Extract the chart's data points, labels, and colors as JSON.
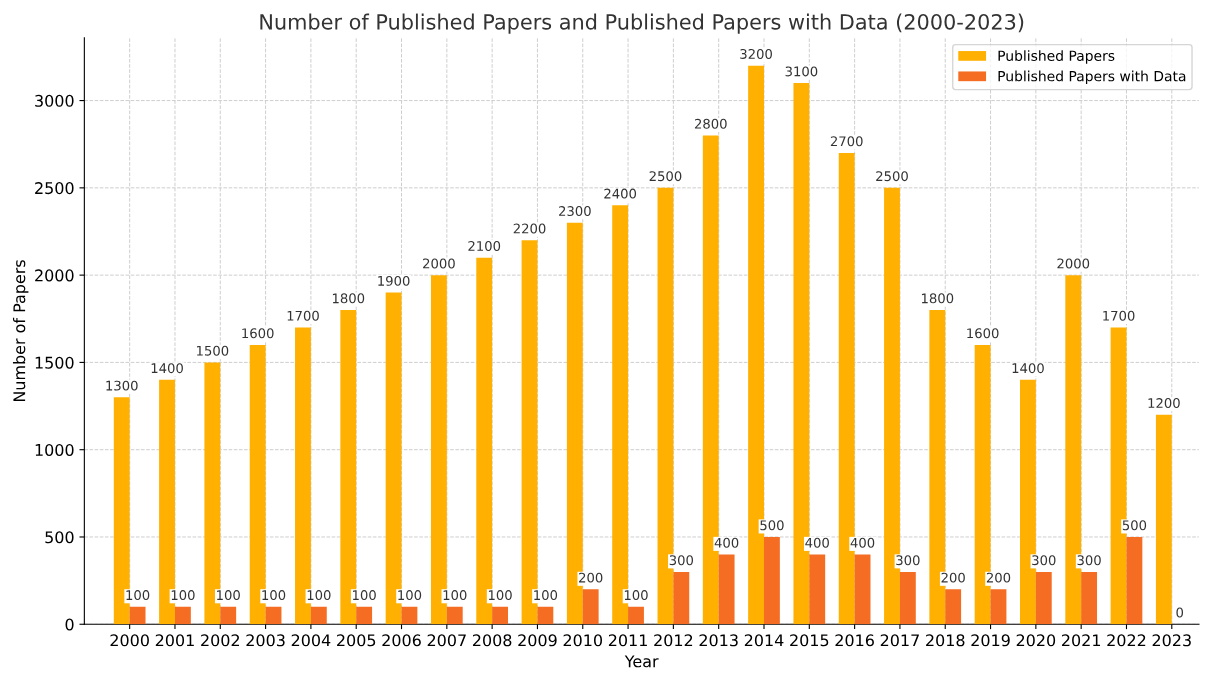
{
  "chart_data": {
    "type": "bar",
    "title": "Number of Published Papers and Published Papers with Data (2000-2023)",
    "xlabel": "Year",
    "ylabel": "Number of Papers",
    "categories": [
      "2000",
      "2001",
      "2002",
      "2003",
      "2004",
      "2005",
      "2006",
      "2007",
      "2008",
      "2009",
      "2010",
      "2011",
      "2012",
      "2013",
      "2014",
      "2015",
      "2016",
      "2017",
      "2018",
      "2019",
      "2020",
      "2021",
      "2022",
      "2023"
    ],
    "series": [
      {
        "name": "Published Papers",
        "color": "#ffb000",
        "values": [
          1300,
          1400,
          1500,
          1600,
          1700,
          1800,
          1900,
          2000,
          2100,
          2200,
          2300,
          2400,
          2500,
          2800,
          3200,
          3100,
          2700,
          2500,
          1800,
          1600,
          1400,
          2000,
          1700,
          1200
        ]
      },
      {
        "name": "Published Papers with Data",
        "color": "#f46d22",
        "values": [
          100,
          100,
          100,
          100,
          100,
          100,
          100,
          100,
          100,
          100,
          200,
          100,
          300,
          400,
          500,
          400,
          400,
          300,
          200,
          200,
          300,
          300,
          500,
          0
        ]
      }
    ],
    "ylim": [
      0,
      3360
    ],
    "yticks": [
      0,
      500,
      1000,
      1500,
      2000,
      2500,
      3000
    ],
    "grid": true,
    "legend": "top right",
    "data_labels": true
  }
}
